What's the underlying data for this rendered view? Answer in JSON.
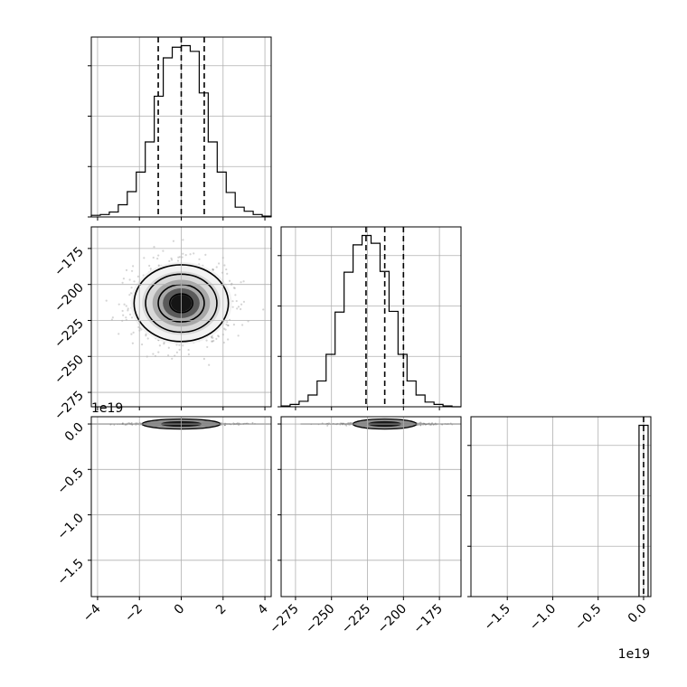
{
  "chart_data": {
    "type": "corner",
    "parameters": [
      {
        "id": "p0",
        "range": [
          -4.3,
          4.3
        ],
        "ticks": [
          -4,
          -2,
          0,
          2,
          4
        ],
        "tick_labels": [
          "−4",
          "−2",
          "0",
          "2",
          "4"
        ],
        "offset_text": ""
      },
      {
        "id": "p1",
        "range": [
          -285,
          -160
        ],
        "ticks": [
          -275,
          -250,
          -225,
          -200,
          -175
        ],
        "tick_labels": [
          "−275",
          "−250",
          "−225",
          "−200",
          "−175"
        ],
        "offset_text": ""
      },
      {
        "id": "p2",
        "range": [
          -1.9,
          0.08
        ],
        "ticks": [
          -1.5,
          -1.0,
          -0.5,
          0.0
        ],
        "tick_labels": [
          "−1.5",
          "−1.0",
          "−0.5",
          "0.0"
        ],
        "offset_text": "1e19"
      }
    ],
    "quantiles": {
      "p0": [
        -1.1,
        0.0,
        1.1
      ],
      "p1": [
        -226,
        -213,
        -200
      ],
      "p2": [
        0.0
      ]
    },
    "histograms": {
      "p0": {
        "bin_edges": [
          -4.3,
          -3.87,
          -3.44,
          -3.01,
          -2.58,
          -2.15,
          -1.72,
          -1.29,
          -0.86,
          -0.43,
          0.0,
          0.43,
          0.86,
          1.29,
          1.72,
          2.15,
          2.58,
          3.01,
          3.44,
          3.87,
          4.3
        ],
        "counts": [
          2,
          3,
          6,
          15,
          31,
          55,
          92,
          148,
          195,
          208,
          210,
          203,
          152,
          92,
          55,
          30,
          12,
          7,
          3,
          1
        ]
      },
      "p1": {
        "bin_edges": [
          -285,
          -278.75,
          -272.5,
          -266.25,
          -260,
          -253.75,
          -247.5,
          -241.25,
          -235,
          -228.75,
          -222.5,
          -216.25,
          -210,
          -203.75,
          -197.5,
          -191.25,
          -185,
          -178.75,
          -172.5,
          -166.25,
          -160
        ],
        "counts": [
          1,
          3,
          7,
          15,
          33,
          67,
          121,
          172,
          207,
          219,
          209,
          173,
          122,
          67,
          33,
          15,
          6,
          3,
          1,
          0
        ]
      },
      "p2": {
        "bin_edges": [
          -0.05,
          0.05
        ],
        "counts": [
          100
        ]
      }
    },
    "pairs": [
      {
        "x": "p0",
        "y": "p1",
        "center": [
          0.0,
          -213
        ],
        "spread": [
          1.1,
          13
        ]
      },
      {
        "x": "p0",
        "y": "p2",
        "center": [
          0.0,
          0.0
        ],
        "spread": [
          1.1,
          0.01
        ]
      },
      {
        "x": "p1",
        "y": "p2",
        "center": [
          -213,
          0.0
        ],
        "spread": [
          13,
          0.01
        ]
      }
    ],
    "grid": true
  }
}
